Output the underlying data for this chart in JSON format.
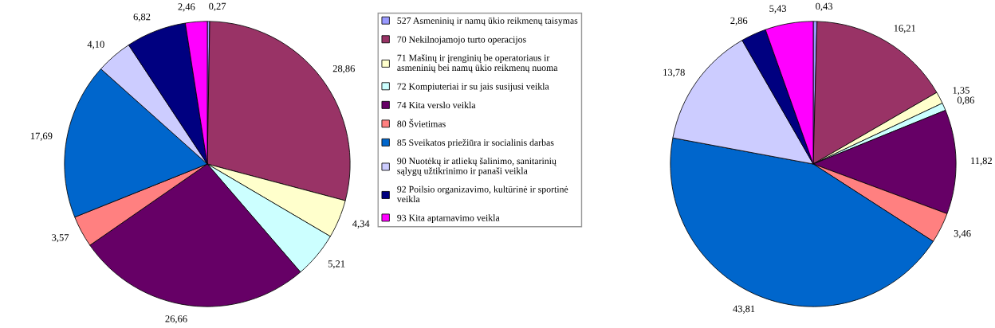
{
  "chart_data": [
    {
      "type": "pie",
      "legend": "right",
      "categories": [
        "527 Asmeninių ir namų ūkio reikmenų taisymas",
        "70 Nekilnojamojo turto operacijos",
        "71 Mašinų ir įrenginių be operatoriaus ir asmeninių bei namų ūkio reikmenų nuoma",
        "72 Kompiuteriai ir su jais susijusi veikla",
        "74 Kita verslo veikla",
        "80 Švietimas",
        "85 Sveikatos priežiūra ir socialinis darbas",
        "90 Nuotėkų ir atliekų šalinimo, sanitarinių sąlygų užtikrinimo ir panaši veikla",
        "92 Poilsio organizavimo, kultūrinė ir sportinė veikla",
        "93 Kita aptarnavimo veikla"
      ],
      "values": [
        0.27,
        28.86,
        4.34,
        5.21,
        26.66,
        3.57,
        17.69,
        4.1,
        6.82,
        2.46
      ],
      "value_labels": [
        "0,27",
        "28,86",
        "4,34",
        "5,21",
        "26,66",
        "3,57",
        "17,69",
        "4,10",
        "6,82",
        "2,46"
      ],
      "colors": [
        "#9999ff",
        "#993366",
        "#ffffcc",
        "#ccffff",
        "#660066",
        "#ff8080",
        "#0066cc",
        "#ccccff",
        "#000080",
        "#ff00ff"
      ]
    },
    {
      "type": "pie",
      "categories": [
        null,
        null,
        null,
        null,
        null,
        null,
        null,
        null,
        null,
        null
      ],
      "values": [
        0.43,
        16.21,
        1.35,
        0.86,
        11.82,
        3.46,
        43.81,
        13.78,
        2.86,
        5.43
      ],
      "value_labels": [
        "0,43",
        "16,21",
        "1,35",
        "0,86",
        "11,82",
        "3,46",
        "43,81",
        "13,78",
        "2,86",
        "5,43"
      ],
      "colors": [
        "#9999ff",
        "#993366",
        "#ffffcc",
        "#ccffff",
        "#660066",
        "#ff8080",
        "#0066cc",
        "#ccccff",
        "#000080",
        "#ff00ff"
      ]
    }
  ]
}
